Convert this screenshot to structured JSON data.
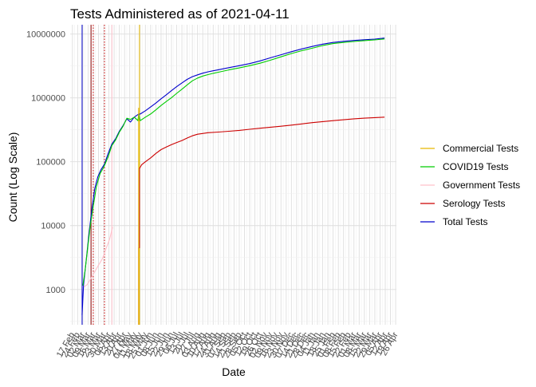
{
  "chart_data": {
    "type": "line",
    "title": "Tests Administered as of 2021-04-11",
    "xlabel": "Date",
    "ylabel": "Count (Log Scale)",
    "y_scale": "log10",
    "ylim": [
      280,
      14000000
    ],
    "xlim": [
      "2020-02-14",
      "2021-04-27"
    ],
    "y_ticks": [
      1000,
      10000,
      100000,
      1000000,
      10000000
    ],
    "y_tick_labels": [
      "1000",
      "10000",
      "100000",
      "1000000",
      "10000000"
    ],
    "x_tick_labels": [
      "17 Feb",
      "24 Feb",
      "02 Mar",
      "09 Mar",
      "16 Mar",
      "23 Mar",
      "30 Mar",
      "06 Apr",
      "13 Apr",
      "20 Apr",
      "27 Apr",
      "04 May",
      "11 May",
      "18 May",
      "25 May",
      "01 Jun",
      "08 Jun",
      "15 Jun",
      "22 Jun",
      "29 Jun",
      "06 Jul",
      "13 Jul",
      "20 Jul",
      "27 Jul",
      "03 Aug",
      "10 Aug",
      "17 Aug",
      "24 Aug",
      "31 Aug",
      "07 Sep",
      "14 Sep",
      "21 Sep",
      "28 Sep",
      "05 Oct",
      "12 Oct",
      "19 Oct",
      "26 Oct",
      "02 Nov",
      "09 Nov",
      "16 Nov",
      "23 Nov",
      "30 Nov",
      "07 Dec",
      "14 Dec",
      "21 Dec",
      "28 Dec",
      "04 Jan",
      "11 Jan",
      "18 Jan",
      "25 Jan",
      "01 Feb",
      "08 Feb",
      "15 Feb",
      "22 Feb",
      "01 Mar",
      "08 Mar",
      "15 Mar",
      "22 Mar",
      "29 Mar",
      "05 Apr",
      "12 Apr",
      "19 Apr",
      "26 Apr"
    ],
    "grid": true,
    "legend_position": "right",
    "vertical_lines": [
      {
        "date": "2020-03-01",
        "color": "#0000cc",
        "style": "solid"
      },
      {
        "date": "2020-03-13",
        "color": "#8b0000",
        "style": "solid"
      },
      {
        "date": "2020-03-16",
        "color": "#cc0000",
        "style": "dotted"
      },
      {
        "date": "2020-03-31",
        "color": "#cc0000",
        "style": "dotted"
      },
      {
        "date": "2020-04-10",
        "color": "#ffc0cb",
        "style": "solid"
      },
      {
        "date": "2020-05-17",
        "color": "#e6b800",
        "style": "solid"
      }
    ],
    "series": [
      {
        "name": "Commercial Tests",
        "color": "#e6b800",
        "x": [
          "2020-05-16",
          "2020-05-16"
        ],
        "y": [
          280,
          700000
        ]
      },
      {
        "name": "COVID19 Tests",
        "color": "#00cc00",
        "x": [
          "2020-03-02",
          "2020-03-05",
          "2020-03-08",
          "2020-03-12",
          "2020-03-16",
          "2020-03-20",
          "2020-03-25",
          "2020-03-30",
          "2020-04-05",
          "2020-04-10",
          "2020-04-15",
          "2020-04-20",
          "2020-04-25",
          "2020-04-30",
          "2020-05-05",
          "2020-05-10",
          "2020-05-15",
          "2020-05-16",
          "2020-05-18",
          "2020-05-25",
          "2020-06-01",
          "2020-06-08",
          "2020-06-15",
          "2020-06-22",
          "2020-06-29",
          "2020-07-06",
          "2020-07-13",
          "2020-07-20",
          "2020-07-27",
          "2020-08-03",
          "2020-08-10",
          "2020-08-17",
          "2020-08-24",
          "2020-08-31",
          "2020-09-14",
          "2020-09-28",
          "2020-10-12",
          "2020-10-26",
          "2020-11-09",
          "2020-11-23",
          "2020-12-07",
          "2020-12-21",
          "2021-01-04",
          "2021-01-18",
          "2021-02-01",
          "2021-02-15",
          "2021-03-01",
          "2021-03-15",
          "2021-03-29",
          "2021-04-11"
        ],
        "y": [
          1150,
          2000,
          4000,
          10000,
          20000,
          40000,
          65000,
          82000,
          120000,
          180000,
          220000,
          290000,
          360000,
          480000,
          460000,
          500000,
          440000,
          560000,
          440000,
          500000,
          560000,
          650000,
          760000,
          880000,
          1010000,
          1180000,
          1370000,
          1600000,
          1850000,
          2050000,
          2200000,
          2320000,
          2430000,
          2530000,
          2750000,
          2950000,
          3200000,
          3500000,
          3900000,
          4400000,
          4950000,
          5500000,
          6000000,
          6600000,
          7100000,
          7400000,
          7650000,
          7900000,
          8100000,
          8400000
        ]
      },
      {
        "name": "Government Tests",
        "color": "#ffc0cb",
        "x": [
          "2020-03-04",
          "2020-03-08",
          "2020-03-13",
          "2020-03-18",
          "2020-03-23",
          "2020-03-28",
          "2020-04-02",
          "2020-04-07",
          "2020-04-11"
        ],
        "y": [
          1100,
          1200,
          1500,
          1900,
          2400,
          3000,
          4300,
          6200,
          9500
        ]
      },
      {
        "name": "Serology Tests",
        "color": "#cc0000",
        "x": [
          "2020-05-16",
          "2020-05-16",
          "2020-05-17",
          "2020-05-17",
          "2020-05-20",
          "2020-05-25",
          "2020-06-01",
          "2020-06-08",
          "2020-06-15",
          "2020-06-22",
          "2020-06-29",
          "2020-07-06",
          "2020-07-13",
          "2020-07-20",
          "2020-07-27",
          "2020-08-03",
          "2020-08-17",
          "2020-08-31",
          "2020-09-14",
          "2020-09-28",
          "2020-10-12",
          "2020-10-26",
          "2020-11-09",
          "2020-11-23",
          "2020-12-07",
          "2020-12-21",
          "2021-01-04",
          "2021-01-18",
          "2021-02-01",
          "2021-02-15",
          "2021-03-01",
          "2021-03-15",
          "2021-03-29",
          "2021-04-11"
        ],
        "y": [
          280,
          4500,
          4500,
          78000,
          90000,
          100000,
          115000,
          135000,
          155000,
          170000,
          185000,
          200000,
          215000,
          235000,
          255000,
          270000,
          285000,
          292000,
          300000,
          310000,
          323000,
          335000,
          348000,
          360000,
          375000,
          392000,
          410000,
          425000,
          440000,
          455000,
          470000,
          482000,
          492000,
          500000
        ]
      },
      {
        "name": "Total Tests",
        "color": "#0000cc",
        "x": [
          "2020-03-01",
          "2020-03-03",
          "2020-03-06",
          "2020-03-10",
          "2020-03-14",
          "2020-03-18",
          "2020-03-22",
          "2020-03-26",
          "2020-03-31",
          "2020-04-05",
          "2020-04-10",
          "2020-04-15",
          "2020-04-20",
          "2020-04-25",
          "2020-04-30",
          "2020-05-05",
          "2020-05-10",
          "2020-05-16",
          "2020-05-18",
          "2020-05-25",
          "2020-06-01",
          "2020-06-08",
          "2020-06-15",
          "2020-06-22",
          "2020-06-29",
          "2020-07-06",
          "2020-07-13",
          "2020-07-20",
          "2020-07-27",
          "2020-08-03",
          "2020-08-10",
          "2020-08-17",
          "2020-08-24",
          "2020-08-31",
          "2020-09-14",
          "2020-09-28",
          "2020-10-12",
          "2020-10-26",
          "2020-11-09",
          "2020-11-23",
          "2020-12-07",
          "2020-12-21",
          "2021-01-04",
          "2021-01-18",
          "2021-02-01",
          "2021-02-15",
          "2021-03-01",
          "2021-03-15",
          "2021-03-29",
          "2021-04-11"
        ],
        "y": [
          400,
          1200,
          2500,
          7000,
          18000,
          38000,
          58000,
          74000,
          92000,
          135000,
          190000,
          230000,
          300000,
          370000,
          470000,
          420000,
          500000,
          560000,
          560000,
          630000,
          720000,
          830000,
          970000,
          1120000,
          1300000,
          1500000,
          1720000,
          1950000,
          2150000,
          2300000,
          2440000,
          2560000,
          2660000,
          2760000,
          2980000,
          3200000,
          3450000,
          3800000,
          4250000,
          4750000,
          5300000,
          5850000,
          6400000,
          6950000,
          7400000,
          7700000,
          7950000,
          8150000,
          8350000,
          8650000
        ]
      }
    ]
  }
}
